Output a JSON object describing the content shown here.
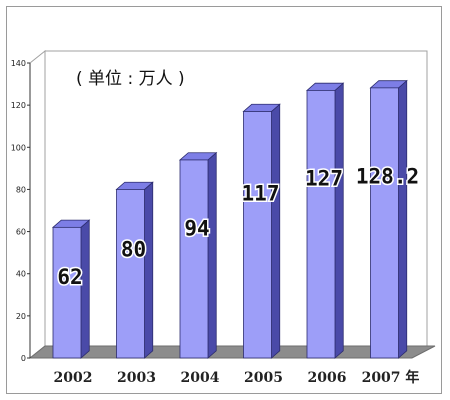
{
  "chart_data": {
    "type": "bar",
    "categories": [
      "2002",
      "2003",
      "2004",
      "2005",
      "2006",
      "2007 年"
    ],
    "values": [
      62,
      80,
      94,
      117,
      127,
      128.2
    ],
    "data_labels": [
      "62",
      "80",
      "94",
      "117",
      "127",
      "128.2"
    ],
    "unit_label": "( 单位 : 万人 )",
    "ylim": [
      0,
      140
    ],
    "yticks": [
      "0",
      "20",
      "40",
      "60",
      "80",
      "100",
      "120",
      "140"
    ],
    "grid": false,
    "legend": "none",
    "style": "3d-column"
  },
  "colors": {
    "bar_front": "#9d9ef8",
    "bar_side": "#4a4aa8",
    "bar_top": "#7d7ee6",
    "floor": "#8c8c8c",
    "wall": "#ffffff"
  }
}
